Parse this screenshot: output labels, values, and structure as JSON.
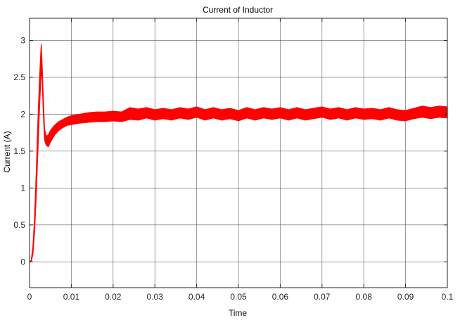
{
  "chart_data": {
    "type": "line",
    "title": "Current of Inductor",
    "xlabel": "Time",
    "ylabel": "Current (A)",
    "xlim": [
      0,
      0.1
    ],
    "ylim": [
      -0.35,
      3.3
    ],
    "grid": true,
    "x_ticks": [
      0,
      0.01,
      0.02,
      0.03,
      0.04,
      0.05,
      0.06,
      0.07,
      0.08,
      0.09,
      0.1
    ],
    "x_tick_labels": [
      "0",
      "0.01",
      "0.02",
      "0.03",
      "0.04",
      "0.05",
      "0.06",
      "0.07",
      "0.08",
      "0.09",
      "0.1"
    ],
    "y_ticks": [
      0,
      0.5,
      1,
      1.5,
      2,
      2.5,
      3
    ],
    "y_tick_labels": [
      "0",
      "0.5",
      "1",
      "1.5",
      "2",
      "2.5",
      "3"
    ],
    "series": [
      {
        "color": "#ff0000",
        "x": [
          0,
          0.0004,
          0.0008,
          0.0012,
          0.0016,
          0.002,
          0.0024,
          0.0028,
          0.003,
          0.0033,
          0.0036,
          0.004,
          0.0045,
          0.005,
          0.006,
          0.007,
          0.008,
          0.009,
          0.01,
          0.012,
          0.014,
          0.016,
          0.018,
          0.02,
          0.022,
          0.024,
          0.026,
          0.028,
          0.03,
          0.032,
          0.034,
          0.036,
          0.038,
          0.04,
          0.042,
          0.044,
          0.046,
          0.048,
          0.05,
          0.052,
          0.054,
          0.056,
          0.058,
          0.06,
          0.062,
          0.064,
          0.066,
          0.068,
          0.07,
          0.072,
          0.074,
          0.076,
          0.078,
          0.08,
          0.082,
          0.084,
          0.086,
          0.088,
          0.09,
          0.092,
          0.094,
          0.096,
          0.098,
          0.1
        ],
        "y_upper": [
          0,
          0.02,
          0.2,
          0.6,
          1.2,
          1.9,
          2.5,
          2.95,
          2.7,
          2.2,
          1.8,
          1.7,
          1.72,
          1.78,
          1.85,
          1.9,
          1.93,
          1.96,
          1.98,
          2.0,
          2.02,
          2.03,
          2.03,
          2.04,
          2.03,
          2.09,
          2.07,
          2.09,
          2.06,
          2.08,
          2.06,
          2.09,
          2.07,
          2.1,
          2.06,
          2.09,
          2.06,
          2.08,
          2.05,
          2.09,
          2.06,
          2.09,
          2.07,
          2.09,
          2.06,
          2.09,
          2.06,
          2.08,
          2.1,
          2.07,
          2.09,
          2.06,
          2.09,
          2.07,
          2.08,
          2.06,
          2.09,
          2.06,
          2.05,
          2.08,
          2.11,
          2.09,
          2.11,
          2.1
        ],
        "y_lower": [
          0,
          0.0,
          0.1,
          0.4,
          0.9,
          1.5,
          2.1,
          2.6,
          2.5,
          2.0,
          1.65,
          1.58,
          1.56,
          1.62,
          1.72,
          1.78,
          1.82,
          1.85,
          1.86,
          1.88,
          1.89,
          1.9,
          1.9,
          1.91,
          1.9,
          1.93,
          1.92,
          1.95,
          1.92,
          1.94,
          1.92,
          1.95,
          1.93,
          1.96,
          1.92,
          1.95,
          1.92,
          1.94,
          1.91,
          1.95,
          1.92,
          1.95,
          1.93,
          1.95,
          1.92,
          1.95,
          1.92,
          1.94,
          1.96,
          1.93,
          1.95,
          1.92,
          1.95,
          1.93,
          1.94,
          1.92,
          1.95,
          1.92,
          1.91,
          1.94,
          1.96,
          1.94,
          1.96,
          1.95
        ]
      }
    ]
  }
}
